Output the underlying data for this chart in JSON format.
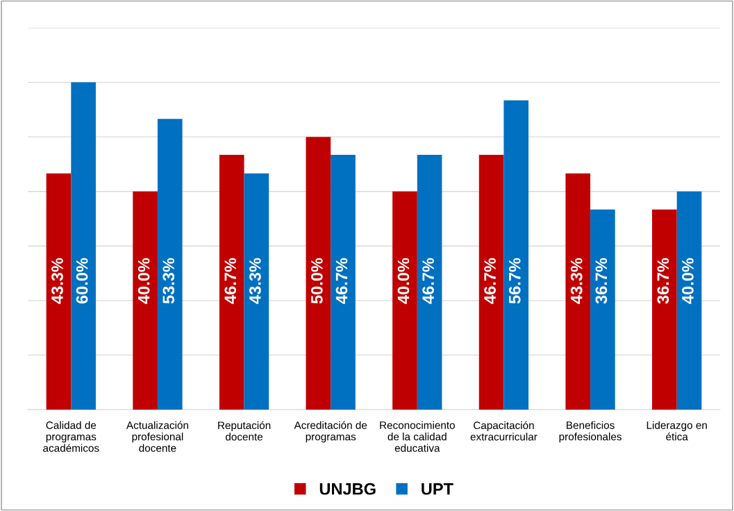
{
  "chart_data": {
    "type": "bar",
    "categories": [
      "Calidad de\nprogramas\nacadémicos",
      "Actualización\nprofesional\ndocente",
      "Reputación\ndocente",
      "Acreditación de\nprogramas",
      "Reconocimiento\nde la calidad\neducativa",
      "Capacitación\nextracurricular",
      "Beneficios\nprofesionales",
      "Liderazgo en\nética"
    ],
    "series": [
      {
        "name": "UNJBG",
        "color": "#c00000",
        "values": [
          43.3,
          40.0,
          46.7,
          50.0,
          40.0,
          46.7,
          43.3,
          36.7
        ],
        "value_labels": [
          "43.3%",
          "40.0%",
          "46.7%",
          "50.0%",
          "40.0%",
          "46.7%",
          "43.3%",
          "36.7%"
        ]
      },
      {
        "name": "UPT",
        "color": "#0070c0",
        "values": [
          60.0,
          53.3,
          43.3,
          46.7,
          46.7,
          56.7,
          36.7,
          40.0
        ],
        "value_labels": [
          "60.0%",
          "53.3%",
          "43.3%",
          "46.7%",
          "46.7%",
          "56.7%",
          "36.7%",
          "40.0%"
        ]
      }
    ],
    "ylim": [
      0,
      70
    ],
    "yticks": [
      {
        "value": 0,
        "label": null
      },
      {
        "value": 10,
        "label": null
      },
      {
        "value": 20,
        "label": null
      },
      {
        "value": 30,
        "label": null
      },
      {
        "value": 40,
        "label": null
      },
      {
        "value": 50,
        "label": null
      },
      {
        "value": 60,
        "label": null
      },
      {
        "value": 70,
        "label": null
      }
    ],
    "tick_labels": "x",
    "grid": "y",
    "legend": "bottom"
  }
}
